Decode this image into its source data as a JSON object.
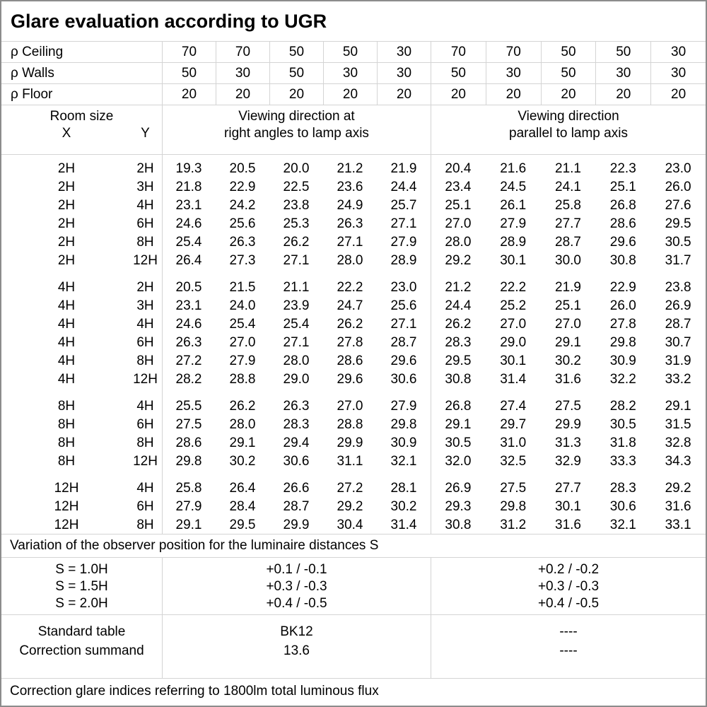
{
  "title": "Glare evaluation according to UGR",
  "colors": {
    "background": "#ffffff",
    "text": "#000000",
    "grid_line": "#d4d4d4",
    "outer_border": "#8c8c8c"
  },
  "reflectance": {
    "rows": [
      {
        "label": "ρ Ceiling",
        "values": [
          "70",
          "70",
          "50",
          "50",
          "30",
          "70",
          "70",
          "50",
          "50",
          "30"
        ]
      },
      {
        "label": "ρ Walls",
        "values": [
          "50",
          "30",
          "50",
          "30",
          "30",
          "50",
          "30",
          "50",
          "30",
          "30"
        ]
      },
      {
        "label": "ρ Floor",
        "values": [
          "20",
          "20",
          "20",
          "20",
          "20",
          "20",
          "20",
          "20",
          "20",
          "20"
        ]
      }
    ]
  },
  "header": {
    "room_size": "Room size",
    "x": "X",
    "y": "Y",
    "right_angle": {
      "line1": "Viewing direction at",
      "line2": "right angles to lamp axis"
    },
    "parallel": {
      "line1": "Viewing direction",
      "line2": "parallel to lamp axis"
    }
  },
  "ugr_table": {
    "blocks": [
      {
        "rows": [
          {
            "x": "2H",
            "y": "2H",
            "right_angle": [
              "19.3",
              "20.5",
              "20.0",
              "21.2",
              "21.9"
            ],
            "parallel": [
              "20.4",
              "21.6",
              "21.1",
              "22.3",
              "23.0"
            ]
          },
          {
            "x": "2H",
            "y": "3H",
            "right_angle": [
              "21.8",
              "22.9",
              "22.5",
              "23.6",
              "24.4"
            ],
            "parallel": [
              "23.4",
              "24.5",
              "24.1",
              "25.1",
              "26.0"
            ]
          },
          {
            "x": "2H",
            "y": "4H",
            "right_angle": [
              "23.1",
              "24.2",
              "23.8",
              "24.9",
              "25.7"
            ],
            "parallel": [
              "25.1",
              "26.1",
              "25.8",
              "26.8",
              "27.6"
            ]
          },
          {
            "x": "2H",
            "y": "6H",
            "right_angle": [
              "24.6",
              "25.6",
              "25.3",
              "26.3",
              "27.1"
            ],
            "parallel": [
              "27.0",
              "27.9",
              "27.7",
              "28.6",
              "29.5"
            ]
          },
          {
            "x": "2H",
            "y": "8H",
            "right_angle": [
              "25.4",
              "26.3",
              "26.2",
              "27.1",
              "27.9"
            ],
            "parallel": [
              "28.0",
              "28.9",
              "28.7",
              "29.6",
              "30.5"
            ]
          },
          {
            "x": "2H",
            "y": "12H",
            "right_angle": [
              "26.4",
              "27.3",
              "27.1",
              "28.0",
              "28.9"
            ],
            "parallel": [
              "29.2",
              "30.1",
              "30.0",
              "30.8",
              "31.7"
            ]
          }
        ]
      },
      {
        "rows": [
          {
            "x": "4H",
            "y": "2H",
            "right_angle": [
              "20.5",
              "21.5",
              "21.1",
              "22.2",
              "23.0"
            ],
            "parallel": [
              "21.2",
              "22.2",
              "21.9",
              "22.9",
              "23.8"
            ]
          },
          {
            "x": "4H",
            "y": "3H",
            "right_angle": [
              "23.1",
              "24.0",
              "23.9",
              "24.7",
              "25.6"
            ],
            "parallel": [
              "24.4",
              "25.2",
              "25.1",
              "26.0",
              "26.9"
            ]
          },
          {
            "x": "4H",
            "y": "4H",
            "right_angle": [
              "24.6",
              "25.4",
              "25.4",
              "26.2",
              "27.1"
            ],
            "parallel": [
              "26.2",
              "27.0",
              "27.0",
              "27.8",
              "28.7"
            ]
          },
          {
            "x": "4H",
            "y": "6H",
            "right_angle": [
              "26.3",
              "27.0",
              "27.1",
              "27.8",
              "28.7"
            ],
            "parallel": [
              "28.3",
              "29.0",
              "29.1",
              "29.8",
              "30.7"
            ]
          },
          {
            "x": "4H",
            "y": "8H",
            "right_angle": [
              "27.2",
              "27.9",
              "28.0",
              "28.6",
              "29.6"
            ],
            "parallel": [
              "29.5",
              "30.1",
              "30.2",
              "30.9",
              "31.9"
            ]
          },
          {
            "x": "4H",
            "y": "12H",
            "right_angle": [
              "28.2",
              "28.8",
              "29.0",
              "29.6",
              "30.6"
            ],
            "parallel": [
              "30.8",
              "31.4",
              "31.6",
              "32.2",
              "33.2"
            ]
          }
        ]
      },
      {
        "rows": [
          {
            "x": "8H",
            "y": "4H",
            "right_angle": [
              "25.5",
              "26.2",
              "26.3",
              "27.0",
              "27.9"
            ],
            "parallel": [
              "26.8",
              "27.4",
              "27.5",
              "28.2",
              "29.1"
            ]
          },
          {
            "x": "8H",
            "y": "6H",
            "right_angle": [
              "27.5",
              "28.0",
              "28.3",
              "28.8",
              "29.8"
            ],
            "parallel": [
              "29.1",
              "29.7",
              "29.9",
              "30.5",
              "31.5"
            ]
          },
          {
            "x": "8H",
            "y": "8H",
            "right_angle": [
              "28.6",
              "29.1",
              "29.4",
              "29.9",
              "30.9"
            ],
            "parallel": [
              "30.5",
              "31.0",
              "31.3",
              "31.8",
              "32.8"
            ]
          },
          {
            "x": "8H",
            "y": "12H",
            "right_angle": [
              "29.8",
              "30.2",
              "30.6",
              "31.1",
              "32.1"
            ],
            "parallel": [
              "32.0",
              "32.5",
              "32.9",
              "33.3",
              "34.3"
            ]
          }
        ]
      },
      {
        "rows": [
          {
            "x": "12H",
            "y": "4H",
            "right_angle": [
              "25.8",
              "26.4",
              "26.6",
              "27.2",
              "28.1"
            ],
            "parallel": [
              "26.9",
              "27.5",
              "27.7",
              "28.3",
              "29.2"
            ]
          },
          {
            "x": "12H",
            "y": "6H",
            "right_angle": [
              "27.9",
              "28.4",
              "28.7",
              "29.2",
              "30.2"
            ],
            "parallel": [
              "29.3",
              "29.8",
              "30.1",
              "30.6",
              "31.6"
            ]
          },
          {
            "x": "12H",
            "y": "8H",
            "right_angle": [
              "29.1",
              "29.5",
              "29.9",
              "30.4",
              "31.4"
            ],
            "parallel": [
              "30.8",
              "31.2",
              "31.6",
              "32.1",
              "33.1"
            ]
          }
        ]
      }
    ]
  },
  "variation_note": "Variation of the observer position for the luminaire distances S",
  "spacing": {
    "rows": [
      {
        "label": "S = 1.0H",
        "right_angle": "+0.1 / -0.1",
        "parallel": "+0.2 / -0.2"
      },
      {
        "label": "S = 1.5H",
        "right_angle": "+0.3 / -0.3",
        "parallel": "+0.3 / -0.3"
      },
      {
        "label": "S = 2.0H",
        "right_angle": "+0.4 / -0.5",
        "parallel": "+0.4 / -0.5"
      }
    ]
  },
  "summary": {
    "rows": [
      {
        "label": "Standard table",
        "right_angle": "BK12",
        "parallel": "----"
      },
      {
        "label": "Correction summand",
        "right_angle": "13.6",
        "parallel": "----"
      }
    ]
  },
  "footer_note": "Correction glare indices referring to 1800lm total luminous flux"
}
